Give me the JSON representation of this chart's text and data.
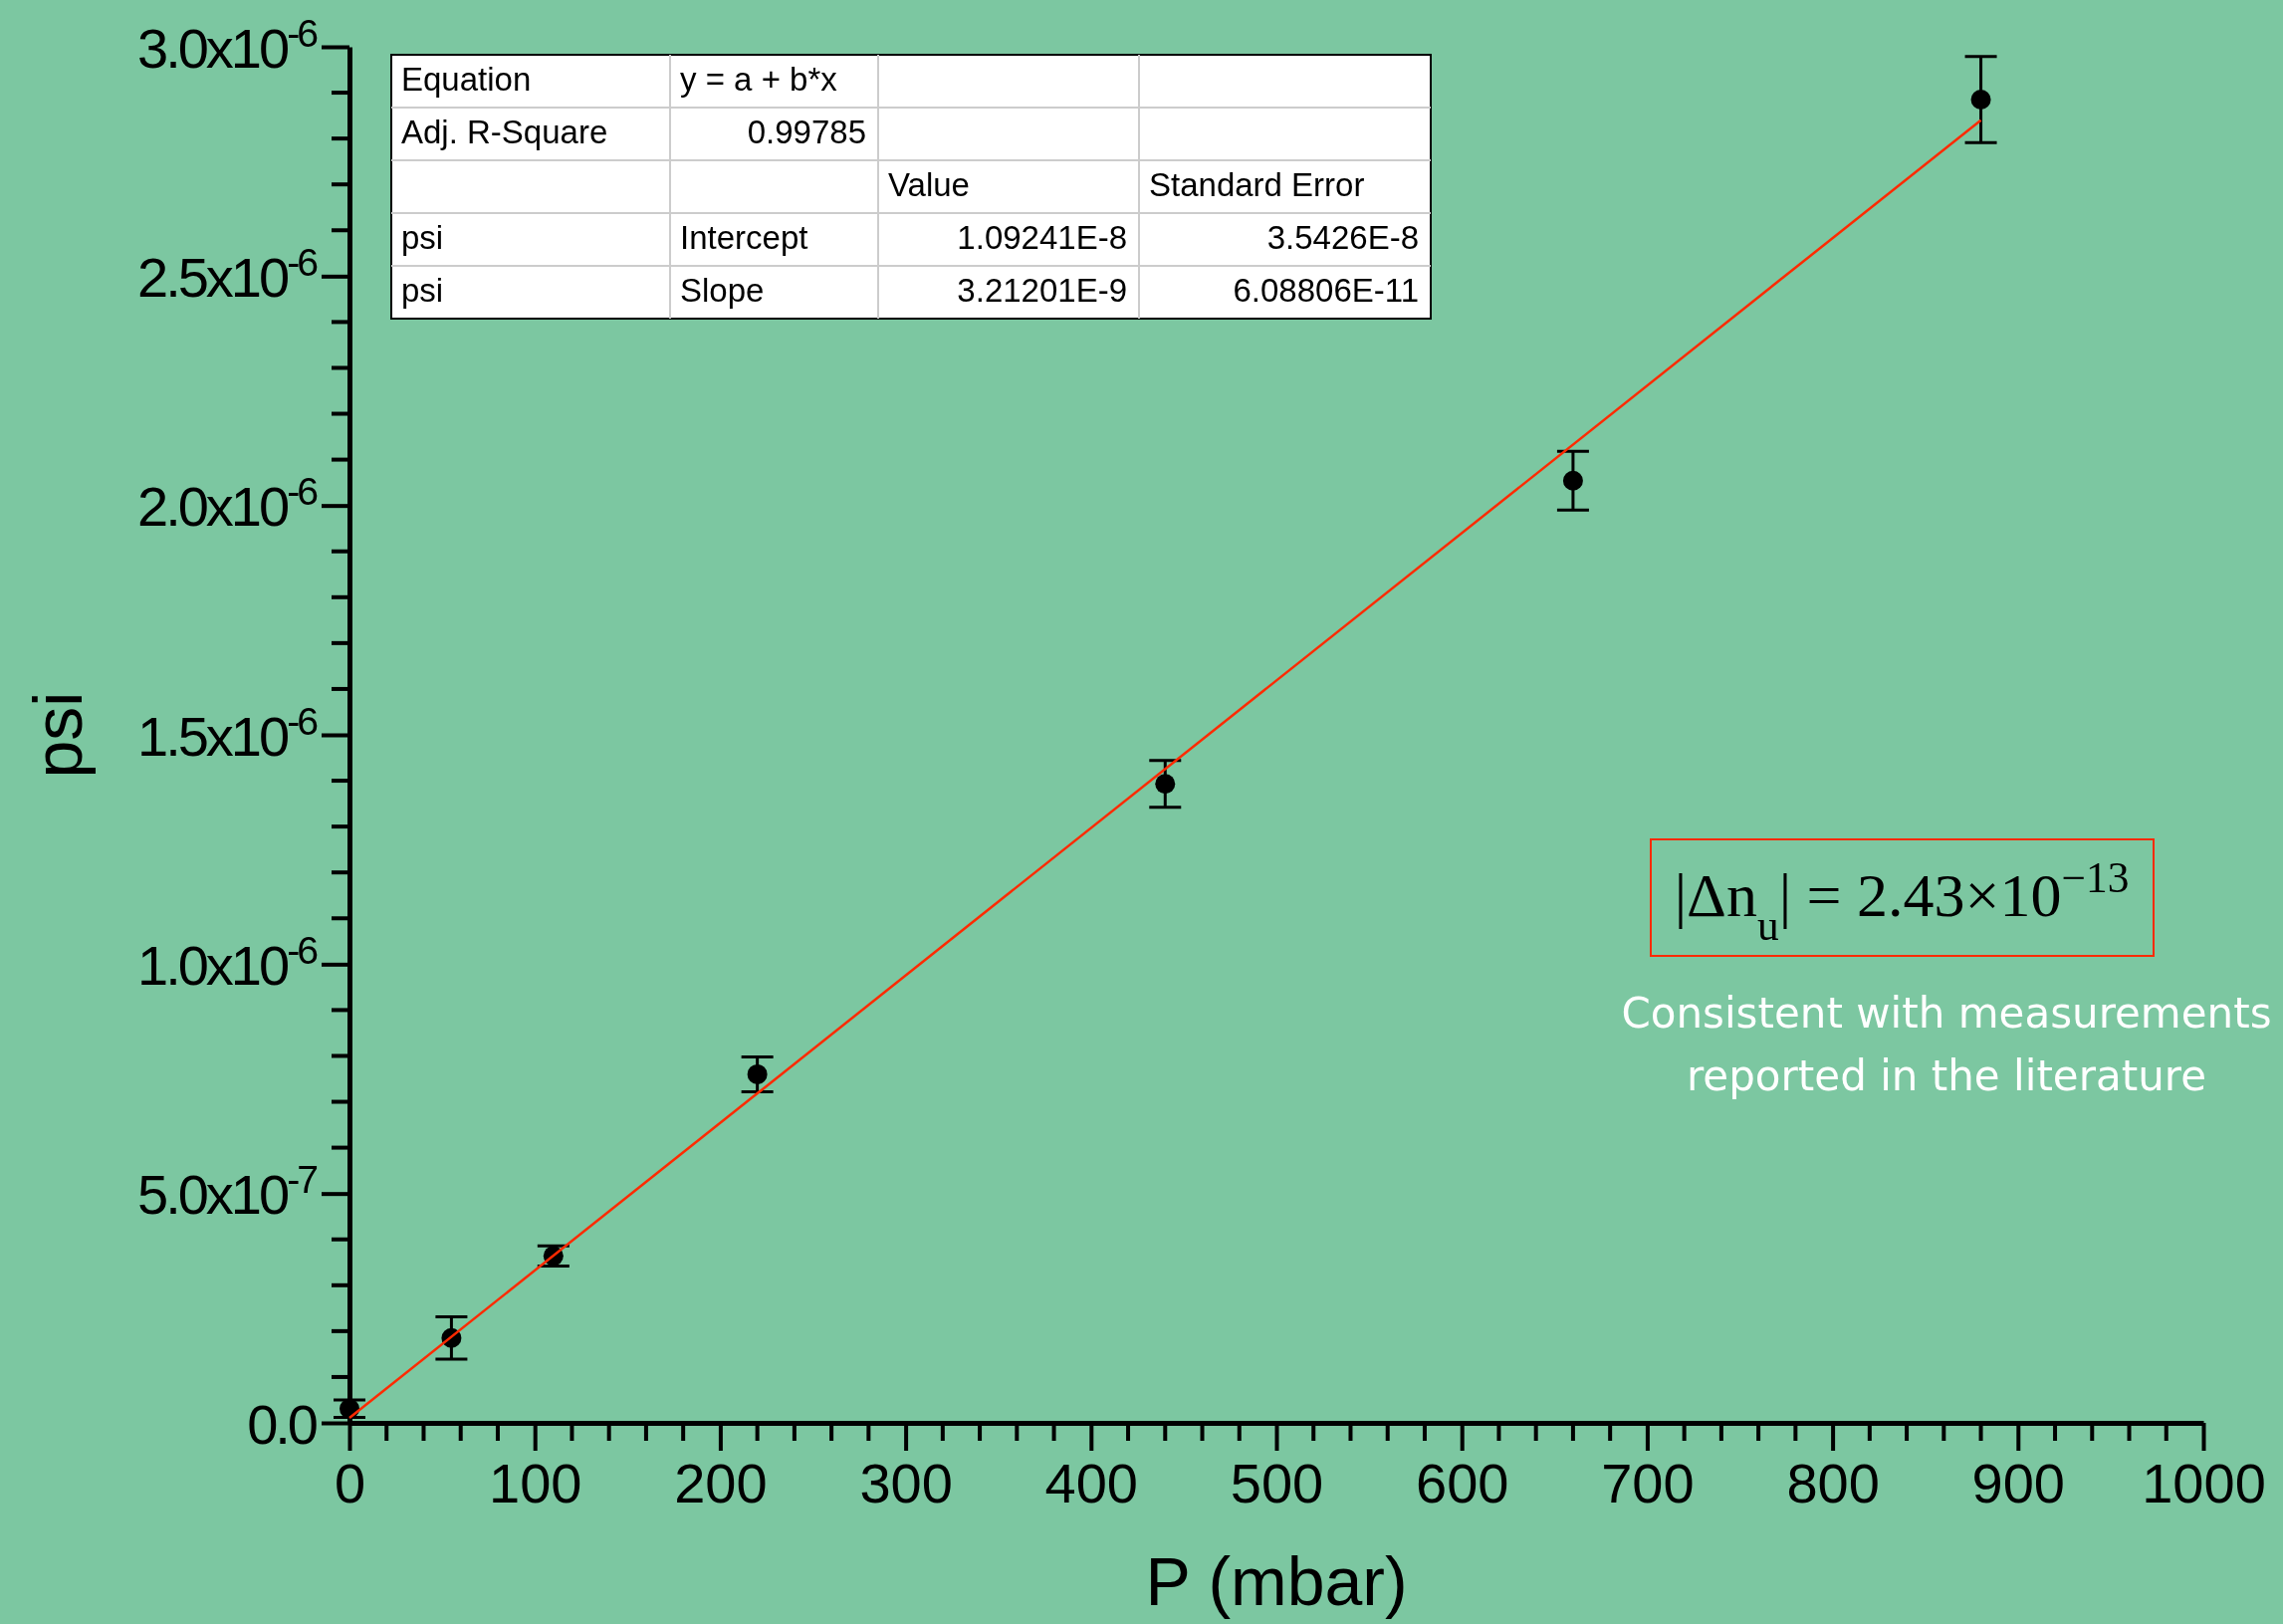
{
  "chart_data": {
    "type": "scatter",
    "xlabel": "P (mbar)",
    "ylabel": "psi",
    "x": [
      0,
      55,
      110,
      220,
      440,
      660,
      880
    ],
    "series": [
      {
        "color": "#000000",
        "marker": "circle",
        "values": [
          3.1e-08,
          1.85e-07,
          3.64e-07,
          7.6e-07,
          1.393e-06,
          2.054e-06,
          2.885e-06
        ],
        "errors": [
          1.9e-08,
          4.6e-08,
          2.2e-08,
          3.8e-08,
          5.1e-08,
          6.4e-08,
          9.4e-08
        ]
      },
      {
        "type": "line",
        "color": "#ff2a00",
        "x": [
          0,
          880
        ],
        "values": [
          1.1e-08,
          2.84e-06
        ]
      }
    ],
    "xlim": [
      0,
      1000
    ],
    "xticks": [
      0,
      100,
      200,
      300,
      400,
      500,
      600,
      700,
      800,
      900,
      1000
    ],
    "ylim": [
      0,
      3e-06
    ],
    "yticks": [
      {
        "value": 0,
        "label": "0.0"
      },
      {
        "value": 5e-07,
        "label": "5.0x10$^{-7}$"
      },
      {
        "value": 1e-06,
        "label": "1.0x10$^{-6}$"
      },
      {
        "value": 1.5e-06,
        "label": "1.5x10$^{-6}$"
      },
      {
        "value": 2e-06,
        "label": "2.0x10$^{-6}$"
      },
      {
        "value": 2.5e-06,
        "label": "2.5x10$^{-6}$"
      },
      {
        "value": 3e-06,
        "label": "3.0x10$^{-6}$"
      }
    ],
    "grid": false,
    "annotations": [
      "Equation",
      "y = a + b*x",
      "Adj. R-Square",
      "0.99785",
      "Value",
      "Standard Error",
      "psi",
      "Intercept",
      "1.09241E-8",
      "3.5426E-8",
      "psi",
      "Slope",
      "3.21201E-9",
      "6.08806E-11",
      "|Δn$_{u}$| = 2.43×10$^{−13}$",
      "Consistent with measurements reported in the literature"
    ]
  }
}
